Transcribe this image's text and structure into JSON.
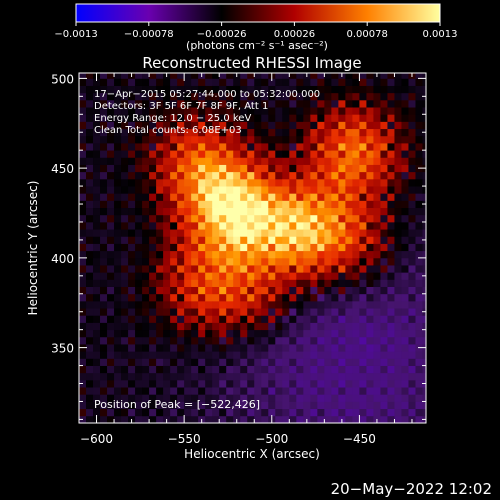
{
  "chart_data": {
    "type": "heatmap",
    "title": "Reconstructed RHESSI Image",
    "xlabel": "Heliocentric X (arcsec)",
    "ylabel": "Heliocentric Y (arcsec)",
    "xlim": [
      -610,
      -412
    ],
    "ylim": [
      308,
      503
    ],
    "x_ticks": [
      {
        "value": -600,
        "label": "−600"
      },
      {
        "value": -550,
        "label": "−550"
      },
      {
        "value": -500,
        "label": "−500"
      },
      {
        "value": -450,
        "label": "−450"
      }
    ],
    "y_ticks": [
      {
        "value": 350,
        "label": "350"
      },
      {
        "value": 400,
        "label": "400"
      },
      {
        "value": 450,
        "label": "450"
      },
      {
        "value": 500,
        "label": "500"
      }
    ],
    "colorbar": {
      "range": [
        -0.0013,
        0.0013
      ],
      "tick_labels": [
        "−0.0013",
        "−0.00078",
        "−0.00026",
        "0.00026",
        "0.00078",
        "0.0013"
      ],
      "unit_label": "(photons cm⁻² s⁻¹ asec⁻²)",
      "colors": [
        "#0000ff",
        "#6a00b0",
        "#000000",
        "#b00000",
        "#ff8000",
        "#ffffa0"
      ]
    },
    "annotations": [
      "17−Apr−2015 05:27:44.000 to 05:32:00.000",
      "Detectors: 3F 5F 6F 7F 8F 9F, Att 1",
      "Energy Range: 12.0 − 25.0 keV",
      "Clean     Total counts: 6.08E+03"
    ],
    "peak_label": "Position of Peak = [−522,426]",
    "peak": {
      "x": -522,
      "y": 426,
      "value": 0.0013
    },
    "sources": [
      {
        "x": -522,
        "y": 426,
        "value": 0.0013
      },
      {
        "x": -485,
        "y": 416,
        "value": 0.00105
      },
      {
        "x": -542,
        "y": 452,
        "value": 0.0007
      },
      {
        "x": -453,
        "y": 458,
        "value": 0.00085
      },
      {
        "x": -456,
        "y": 410,
        "value": 0.0006
      },
      {
        "x": -540,
        "y": 385,
        "value": 0.0006
      },
      {
        "x": -510,
        "y": 382,
        "value": 0.0005
      }
    ]
  },
  "footer": {
    "date_stamp": "20−May−2022 12:02"
  }
}
